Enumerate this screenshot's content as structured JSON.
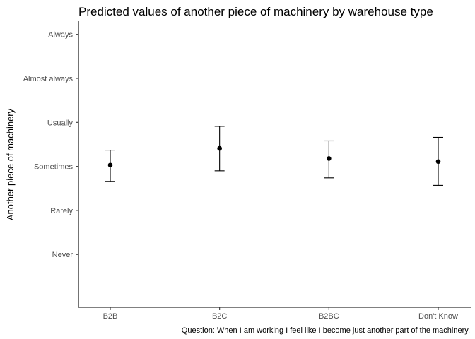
{
  "chart_data": {
    "type": "scatter",
    "title": "Predicted values of another piece of machinery by warehouse type",
    "xlabel": "",
    "ylabel": "Another piece of machinery",
    "caption": "Question: When I am working I feel like I become just another part of the machinery.",
    "categories": [
      "B2B",
      "B2C",
      "B2BC",
      "Don't Know"
    ],
    "y_tick_labels": [
      "Never",
      "Rarely",
      "Sometimes",
      "Usually",
      "Almost always",
      "Always"
    ],
    "y_tick_values": [
      1,
      2,
      3,
      4,
      5,
      6
    ],
    "ylim": [
      -0.2,
      6.3
    ],
    "series": [
      {
        "values": [
          3.03,
          3.41,
          3.18,
          3.11
        ],
        "lower": [
          2.66,
          2.9,
          2.74,
          2.57
        ],
        "upper": [
          3.37,
          3.91,
          3.58,
          3.66
        ]
      }
    ],
    "grid": false,
    "legend": "none",
    "colors": {
      "point": "#000000",
      "axis": "#000000",
      "tick_text": "#4d4d4d"
    }
  }
}
